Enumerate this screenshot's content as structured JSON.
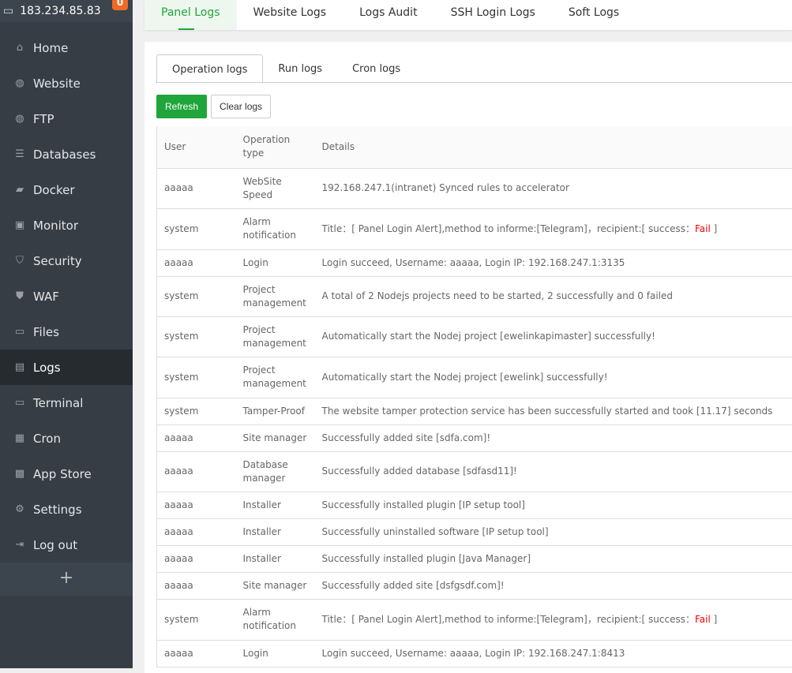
{
  "sidebar": {
    "server_ip": "183.234.85.83",
    "badge": "0",
    "items": [
      {
        "label": "Home",
        "icon": "home-icon",
        "glyph": "⌂"
      },
      {
        "label": "Website",
        "icon": "globe-icon",
        "glyph": "◍"
      },
      {
        "label": "FTP",
        "icon": "ftp-icon",
        "glyph": "◍"
      },
      {
        "label": "Databases",
        "icon": "database-icon",
        "glyph": "☰"
      },
      {
        "label": "Docker",
        "icon": "docker-icon",
        "glyph": "▰"
      },
      {
        "label": "Monitor",
        "icon": "monitor-icon",
        "glyph": "▣"
      },
      {
        "label": "Security",
        "icon": "shield-icon",
        "glyph": "⛉"
      },
      {
        "label": "WAF",
        "icon": "waf-shield-icon",
        "glyph": "⛊"
      },
      {
        "label": "Files",
        "icon": "folder-icon",
        "glyph": "▭"
      },
      {
        "label": "Logs",
        "icon": "logs-icon",
        "glyph": "▤",
        "active": true
      },
      {
        "label": "Terminal",
        "icon": "terminal-icon",
        "glyph": "▭"
      },
      {
        "label": "Cron",
        "icon": "calendar-icon",
        "glyph": "▦"
      },
      {
        "label": "App Store",
        "icon": "apps-icon",
        "glyph": "▩"
      },
      {
        "label": "Settings",
        "icon": "gear-icon",
        "glyph": "⚙"
      },
      {
        "label": "Log out",
        "icon": "logout-icon",
        "glyph": "⇥"
      }
    ],
    "add": "+"
  },
  "tabs": [
    "Panel Logs",
    "Website Logs",
    "Logs Audit",
    "SSH Login Logs",
    "Soft Logs"
  ],
  "subtabs": [
    "Operation logs",
    "Run logs",
    "Cron logs"
  ],
  "buttons": {
    "refresh": "Refresh",
    "clear": "Clear logs"
  },
  "table": {
    "headers": [
      "User",
      "Operation type",
      "Details"
    ],
    "rows": [
      {
        "user": "aaaaa",
        "type": "WebSite Speed",
        "details": "192.168.247.1(intranet) Synced rules to accelerator"
      },
      {
        "user": "system",
        "type": "Alarm notification",
        "details": "Title：[ Panel Login Alert],method to informe:[Telegram]，recipient:[ success：",
        "fail": "Fail",
        "suffix": " ]"
      },
      {
        "user": "aaaaa",
        "type": "Login",
        "details": "Login succeed, Username: aaaaa, Login IP: 192.168.247.1:3135"
      },
      {
        "user": "system",
        "type": "Project management",
        "details": "A total of 2 Nodejs projects need to be started, 2 successfully and 0 failed"
      },
      {
        "user": "system",
        "type": "Project management",
        "details": "Automatically start the Nodej project [ewelinkapimaster] successfully!"
      },
      {
        "user": "system",
        "type": "Project management",
        "details": "Automatically start the Nodej project [ewelink] successfully!"
      },
      {
        "user": "system",
        "type": "Tamper-Proof",
        "details": "The website tamper protection service has been successfully started and took [11.17] seconds"
      },
      {
        "user": "aaaaa",
        "type": "Site manager",
        "details": "Successfully added site [sdfa.com]!"
      },
      {
        "user": "aaaaa",
        "type": "Database manager",
        "details": "Successfully added database [sdfasd11]!"
      },
      {
        "user": "aaaaa",
        "type": "Installer",
        "details": "Successfully installed plugin [IP setup tool]"
      },
      {
        "user": "aaaaa",
        "type": "Installer",
        "details": "Successfully uninstalled software [IP setup tool]"
      },
      {
        "user": "aaaaa",
        "type": "Installer",
        "details": "Successfully installed plugin [Java Manager]"
      },
      {
        "user": "aaaaa",
        "type": "Site manager",
        "details": "Successfully added site [dsfgsdf.com]!"
      },
      {
        "user": "system",
        "type": "Alarm notification",
        "details": "Title：[ Panel Login Alert],method to informe:[Telegram]，recipient:[ success：",
        "fail": "Fail",
        "suffix": " ]"
      },
      {
        "user": "aaaaa",
        "type": "Login",
        "details": "Login succeed, Username: aaaaa, Login IP: 192.168.247.1:8413"
      }
    ]
  }
}
